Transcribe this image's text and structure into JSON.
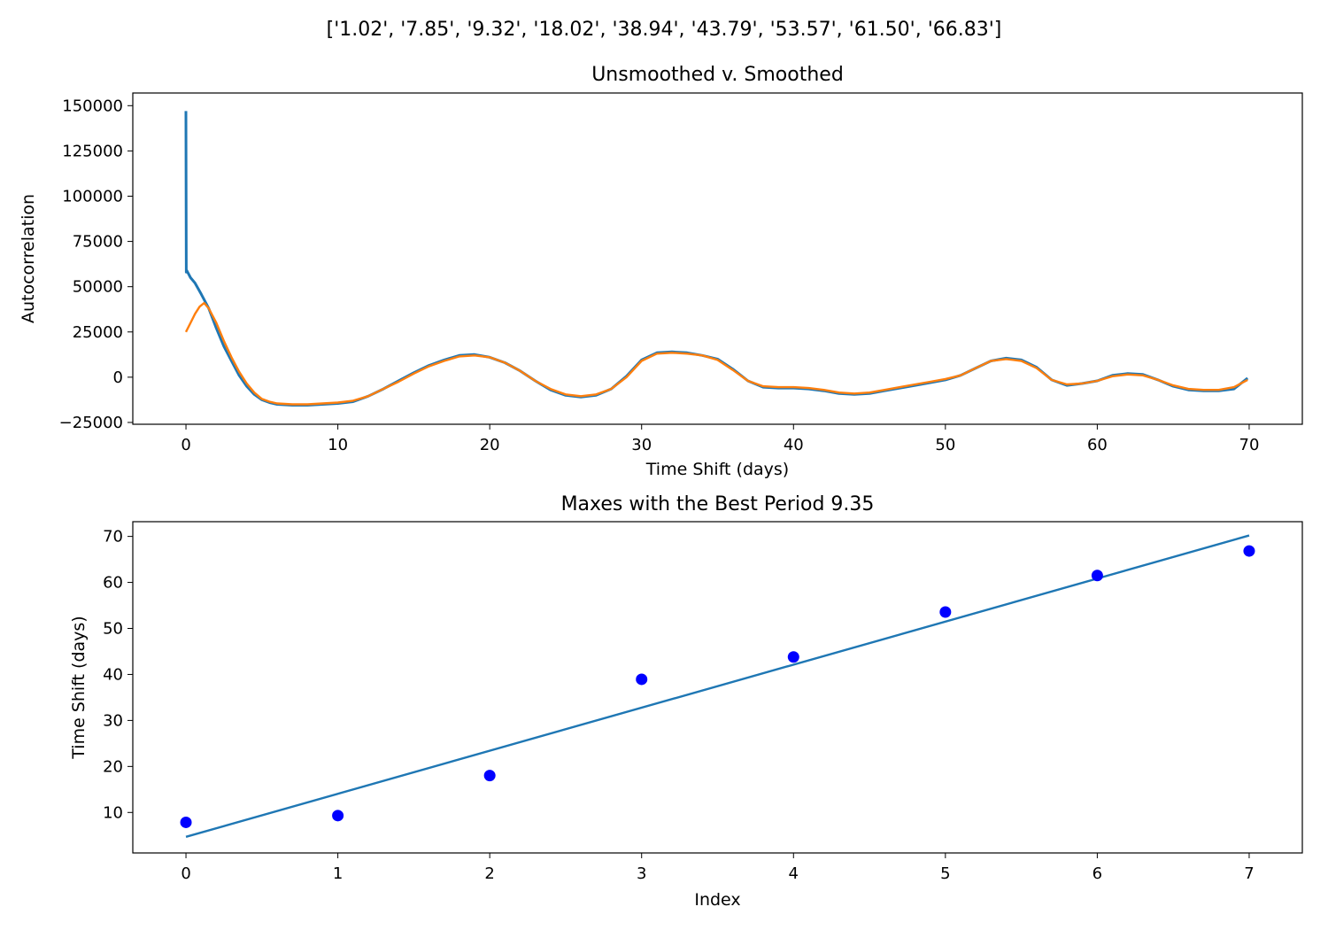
{
  "figure": {
    "suptitle": "['1.02', '7.85', '9.32', '18.02', '38.94', '43.79', '53.57', '61.50', '66.83']"
  },
  "chart_data": [
    {
      "type": "line",
      "title": "Unsmoothed v. Smoothed",
      "xlabel": "Time Shift (days)",
      "ylabel": "Autocorrelation",
      "xlim": [
        -3.5,
        73.5
      ],
      "ylim": [
        -26000,
        157000
      ],
      "xticks": [
        0,
        10,
        20,
        30,
        40,
        50,
        60,
        70
      ],
      "yticks": [
        -25000,
        0,
        25000,
        50000,
        75000,
        100000,
        125000,
        150000
      ],
      "xtick_labels": [
        "0",
        "10",
        "20",
        "30",
        "40",
        "50",
        "60",
        "70"
      ],
      "ytick_labels": [
        "−25000",
        "0",
        "25000",
        "50000",
        "75000",
        "100000",
        "125000",
        "150000"
      ],
      "grid": false,
      "series": [
        {
          "color": "#1f77b4",
          "x": [
            0,
            0.02,
            0.05,
            0.3,
            0.6,
            1.0,
            1.5,
            2.0,
            2.5,
            3.0,
            3.5,
            4.0,
            4.5,
            5.0,
            5.5,
            6.0,
            7.0,
            8.0,
            9.0,
            10.0,
            11.0,
            12.0,
            13.0,
            14.0,
            15.0,
            16.0,
            17.0,
            18.0,
            19.0,
            20.0,
            21.0,
            22.0,
            23.0,
            24.0,
            25.0,
            26.0,
            27.0,
            28.0,
            29.0,
            30.0,
            31.0,
            32.0,
            33.0,
            34.0,
            35.0,
            36.0,
            37.0,
            38.0,
            39.0,
            40.0,
            41.0,
            42.0,
            43.0,
            44.0,
            45.0,
            46.0,
            47.0,
            48.0,
            49.0,
            50.0,
            51.0,
            52.0,
            53.0,
            54.0,
            55.0,
            56.0,
            57.0,
            58.0,
            59.0,
            60.0,
            61.0,
            62.0,
            63.0,
            64.0,
            65.0,
            66.0,
            67.0,
            68.0,
            69.0,
            69.9
          ],
          "y": [
            147000,
            58000,
            59000,
            55000,
            52000,
            46000,
            38000,
            27000,
            17000,
            9000,
            1000,
            -5000,
            -9500,
            -12500,
            -14000,
            -15000,
            -15500,
            -15500,
            -15000,
            -14500,
            -13500,
            -10500,
            -6500,
            -2000,
            2500,
            6500,
            9500,
            12000,
            12500,
            11000,
            8000,
            3500,
            -2000,
            -7000,
            -10000,
            -11000,
            -10000,
            -6500,
            500,
            9500,
            13500,
            14000,
            13500,
            12000,
            10000,
            4500,
            -2000,
            -5500,
            -6000,
            -6000,
            -6500,
            -7500,
            -9000,
            -9500,
            -9000,
            -7500,
            -6000,
            -4500,
            -3000,
            -1500,
            1000,
            5000,
            9000,
            10500,
            9500,
            5500,
            -1500,
            -4500,
            -3500,
            -2000,
            1000,
            2000,
            1500,
            -1500,
            -5000,
            -7000,
            -7500,
            -7500,
            -6500,
            -500
          ]
        },
        {
          "color": "#ff7f0e",
          "x": [
            0,
            0.3,
            0.6,
            0.9,
            1.2,
            1.5,
            2.0,
            2.5,
            3.0,
            3.5,
            4.0,
            4.5,
            5.0,
            5.5,
            6.0,
            7.0,
            8.0,
            9.0,
            10.0,
            11.0,
            12.0,
            13.0,
            14.0,
            15.0,
            16.0,
            17.0,
            18.0,
            19.0,
            20.0,
            21.0,
            22.0,
            23.0,
            24.0,
            25.0,
            26.0,
            27.0,
            28.0,
            29.0,
            30.0,
            31.0,
            32.0,
            33.0,
            34.0,
            35.0,
            36.0,
            37.0,
            38.0,
            39.0,
            40.0,
            41.0,
            42.0,
            43.0,
            44.0,
            45.0,
            46.0,
            47.0,
            48.0,
            49.0,
            50.0,
            51.0,
            52.0,
            53.0,
            54.0,
            55.0,
            56.0,
            57.0,
            58.0,
            59.0,
            60.0,
            61.0,
            62.0,
            63.0,
            64.0,
            65.0,
            66.0,
            67.0,
            68.0,
            69.0,
            69.9
          ],
          "y": [
            25000,
            30000,
            35000,
            39000,
            41000,
            38000,
            30000,
            20000,
            11000,
            3000,
            -3500,
            -8500,
            -12000,
            -13500,
            -14500,
            -15000,
            -15000,
            -14500,
            -14000,
            -13000,
            -10500,
            -6500,
            -2500,
            2000,
            6000,
            9000,
            11500,
            12000,
            11000,
            8000,
            3500,
            -2000,
            -6500,
            -9500,
            -10500,
            -9500,
            -6500,
            0,
            9000,
            13000,
            13500,
            13000,
            12000,
            9500,
            4000,
            -2000,
            -5000,
            -5500,
            -5500,
            -6000,
            -7000,
            -8500,
            -9000,
            -8500,
            -7000,
            -5500,
            -4000,
            -2500,
            -1000,
            1000,
            5000,
            9000,
            10000,
            9000,
            5000,
            -1500,
            -4000,
            -3500,
            -2000,
            500,
            1500,
            1000,
            -1500,
            -4500,
            -6500,
            -7000,
            -7000,
            -5500,
            -1500
          ]
        }
      ]
    },
    {
      "type": "scatter",
      "title": "Maxes with the Best Period 9.35",
      "xlabel": "Index",
      "ylabel": "Time Shift (days)",
      "xlim": [
        -0.35,
        7.35
      ],
      "ylim": [
        1.2,
        73.2
      ],
      "xticks": [
        0,
        1,
        2,
        3,
        4,
        5,
        6,
        7
      ],
      "yticks": [
        10,
        20,
        30,
        40,
        50,
        60,
        70
      ],
      "xtick_labels": [
        "0",
        "1",
        "2",
        "3",
        "4",
        "5",
        "6",
        "7"
      ],
      "ytick_labels": [
        "10",
        "20",
        "30",
        "40",
        "50",
        "60",
        "70"
      ],
      "grid": false,
      "points": {
        "color": "#0000ff",
        "x": [
          0,
          1,
          2,
          3,
          4,
          5,
          6,
          7
        ],
        "y": [
          7.85,
          9.32,
          18.02,
          38.94,
          43.79,
          53.57,
          61.5,
          66.83
        ]
      },
      "fit_line": {
        "color": "#1f77b4",
        "x": [
          0,
          7
        ],
        "y": [
          4.7,
          70.2
        ]
      }
    }
  ]
}
